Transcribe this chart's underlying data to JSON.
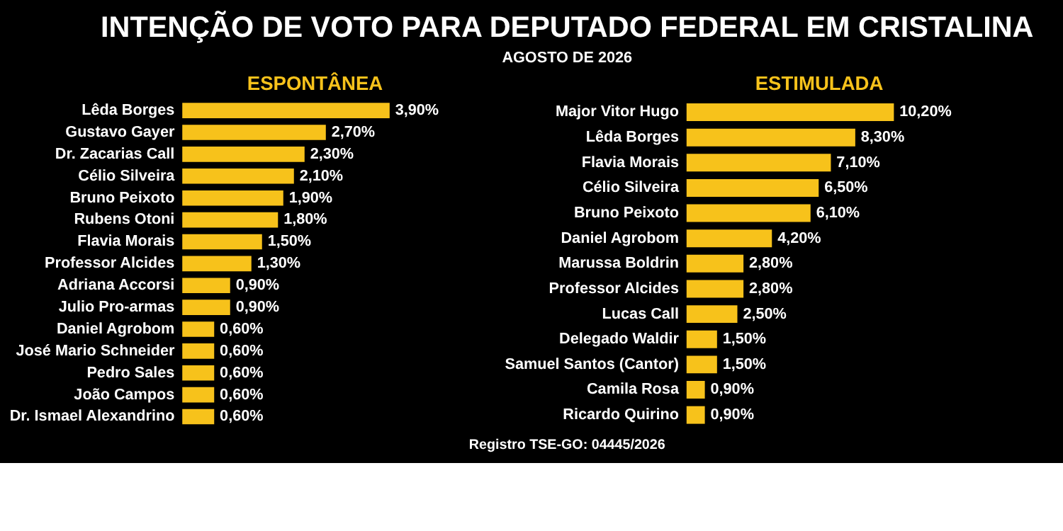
{
  "chart_data": [
    {
      "type": "other",
      "title": "INTENÇÃO DE VOTO PARA DEPUTADO FEDERAL EM CRISTALINA",
      "subtitle": "AGOSTO DE 2026",
      "annotations": [
        "Registro TSE-GO: 04445/2026"
      ]
    },
    {
      "type": "bar",
      "orientation": "horizontal",
      "title": "ESPONTÂNEA",
      "color": "#f7c21b",
      "categories": [
        "Lêda Borges",
        "Gustavo Gayer",
        "Dr. Zacarias Call",
        "Célio Silveira",
        "Bruno Peixoto",
        "Rubens Otoni",
        "Flavia Morais",
        "Professor Alcides",
        "Adriana Accorsi",
        "Julio Pro-armas",
        "Daniel Agrobom",
        "José Mario Schneider",
        "Pedro Sales",
        "João Campos",
        "Dr. Ismael Alexandrino"
      ],
      "values": [
        3.9,
        2.7,
        2.3,
        2.1,
        1.9,
        1.8,
        1.5,
        1.3,
        0.9,
        0.9,
        0.6,
        0.6,
        0.6,
        0.6,
        0.6
      ],
      "value_labels": [
        "3,90%",
        "2,70%",
        "2,30%",
        "2,10%",
        "1,90%",
        "1,80%",
        "1,50%",
        "1,30%",
        "0,90%",
        "0,90%",
        "0,60%",
        "0,60%",
        "0,60%",
        "0,60%",
        "0,60%"
      ]
    },
    {
      "type": "bar",
      "orientation": "horizontal",
      "title": "ESTIMULADA",
      "color": "#f7c21b",
      "categories": [
        "Major Vitor Hugo",
        "Lêda Borges",
        "Flavia Morais",
        "Célio Silveira",
        "Bruno Peixoto",
        "Daniel Agrobom",
        "Marussa Boldrin",
        "Professor Alcides",
        "Lucas Call",
        "Delegado Waldir",
        "Samuel Santos (Cantor)",
        "Camila Rosa",
        "Ricardo Quirino"
      ],
      "values": [
        10.2,
        8.3,
        7.1,
        6.5,
        6.1,
        4.2,
        2.8,
        2.8,
        2.5,
        1.5,
        1.5,
        0.9,
        0.9
      ],
      "value_labels": [
        "10,20%",
        "8,30%",
        "7,10%",
        "6,50%",
        "6,10%",
        "4,20%",
        "2,80%",
        "2,80%",
        "2,50%",
        "1,50%",
        "1,50%",
        "0,90%",
        "0,90%"
      ]
    }
  ]
}
